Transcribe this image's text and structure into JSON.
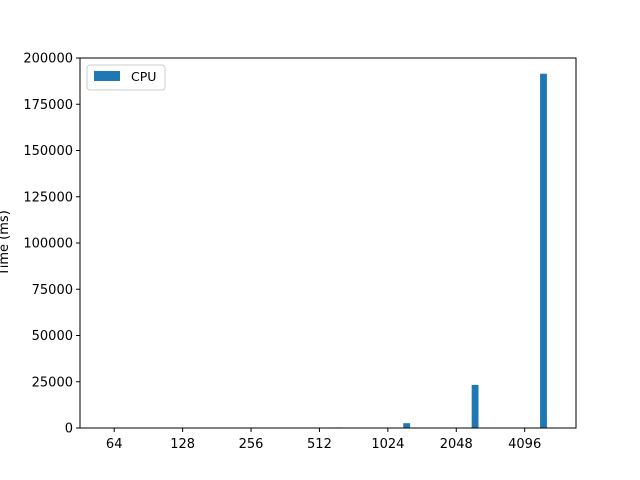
{
  "chart_data": {
    "type": "bar",
    "title": "",
    "xlabel": "",
    "ylabel": "Time (ms)",
    "categories": [
      "64",
      "128",
      "256",
      "512",
      "1024",
      "2048",
      "4096"
    ],
    "ylim": [
      0,
      200000
    ],
    "yticks": [
      0,
      25000,
      50000,
      75000,
      100000,
      125000,
      150000,
      175000,
      200000
    ],
    "grid": false,
    "legend_position": "top-left",
    "series": [
      {
        "name": "CPU",
        "color": "#1f77b4",
        "values": [
          2,
          8,
          40,
          300,
          2600,
          23300,
          191500
        ]
      }
    ]
  }
}
